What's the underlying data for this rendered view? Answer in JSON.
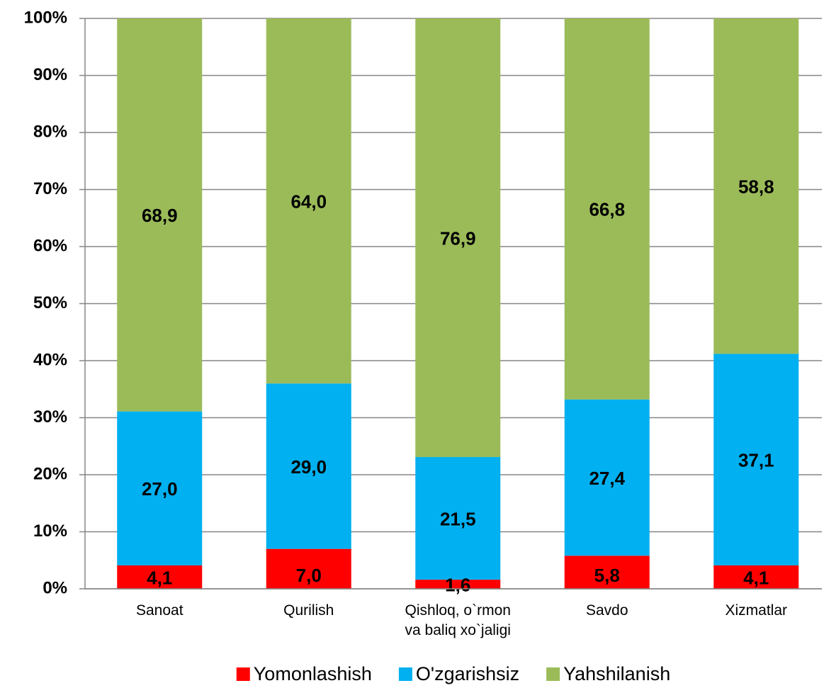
{
  "chart_data": {
    "type": "stacked_bar",
    "categories": [
      "Sanoat",
      "Qurilish",
      "Qishloq, o`rmon va baliq xo`jaligi",
      "Savdo",
      "Xizmatlar"
    ],
    "series": [
      {
        "name": "Yomonlashish",
        "color": "#ff0000",
        "values": [
          4.1,
          7.0,
          1.6,
          5.8,
          4.1
        ],
        "value_labels": [
          "4,1",
          "7,0",
          "1,6",
          "5,8",
          "4,1"
        ]
      },
      {
        "name": "O'zgarishsiz",
        "color": "#00b0f0",
        "values": [
          27.0,
          29.0,
          21.5,
          27.4,
          37.1
        ],
        "value_labels": [
          "27,0",
          "29,0",
          "21,5",
          "27,4",
          "37,1"
        ]
      },
      {
        "name": "Yahshilanish",
        "color": "#9bbb59",
        "values": [
          68.9,
          64.0,
          76.9,
          66.8,
          58.8
        ],
        "value_labels": [
          "68,9",
          "64,0",
          "76,9",
          "66,8",
          "58,8"
        ]
      }
    ],
    "ylim": [
      0,
      100
    ],
    "yticks": [
      {
        "value": 0,
        "label": "0%"
      },
      {
        "value": 10,
        "label": "10%"
      },
      {
        "value": 20,
        "label": "20%"
      },
      {
        "value": 30,
        "label": "30%"
      },
      {
        "value": 40,
        "label": "40%"
      },
      {
        "value": 50,
        "label": "50%"
      },
      {
        "value": 60,
        "label": "60%"
      },
      {
        "value": 70,
        "label": "70%"
      },
      {
        "value": 80,
        "label": "80%"
      },
      {
        "value": 90,
        "label": "90%"
      },
      {
        "value": 100,
        "label": "100%"
      }
    ],
    "grid": true,
    "legend": "bottom"
  }
}
